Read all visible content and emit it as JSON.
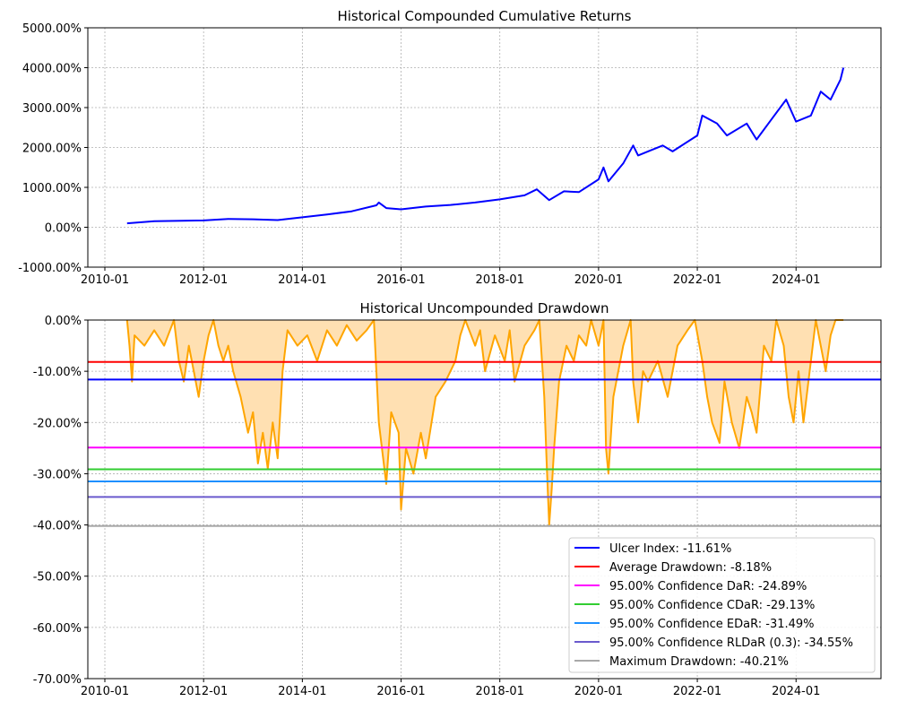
{
  "chart_data": [
    {
      "type": "line",
      "title": "Historical Compounded Cumulative Returns",
      "xlabel": "",
      "ylabel": "",
      "xlim": [
        2009.655,
        2025.72
      ],
      "ylim": [
        -1000,
        5000
      ],
      "grid": true,
      "x_ticks": [
        {
          "v": 2010,
          "label": "2010-01"
        },
        {
          "v": 2012,
          "label": "2012-01"
        },
        {
          "v": 2014,
          "label": "2014-01"
        },
        {
          "v": 2016,
          "label": "2016-01"
        },
        {
          "v": 2018,
          "label": "2018-01"
        },
        {
          "v": 2020,
          "label": "2020-01"
        },
        {
          "v": 2022,
          "label": "2022-01"
        },
        {
          "v": 2024,
          "label": "2024-01"
        }
      ],
      "y_ticks": [
        {
          "v": 5000,
          "label": "5000.00%"
        },
        {
          "v": 4000,
          "label": "4000.00%"
        },
        {
          "v": 3000,
          "label": "3000.00%"
        },
        {
          "v": 2000,
          "label": "2000.00%"
        },
        {
          "v": 1000,
          "label": "1000.00%"
        },
        {
          "v": 0,
          "label": "0.00%"
        },
        {
          "v": -1000,
          "label": "-1000.00%"
        }
      ],
      "series": [
        {
          "name": "Cumulative Returns",
          "color": "#0000ff",
          "x": [
            2010.45,
            2011.0,
            2012.0,
            2012.5,
            2013.0,
            2013.5,
            2014.0,
            2014.5,
            2015.0,
            2015.5,
            2015.55,
            2015.7,
            2016.0,
            2016.5,
            2017.0,
            2017.5,
            2018.0,
            2018.5,
            2018.75,
            2019.0,
            2019.3,
            2019.6,
            2020.0,
            2020.1,
            2020.2,
            2020.5,
            2020.7,
            2020.8,
            2021.0,
            2021.3,
            2021.5,
            2022.0,
            2022.1,
            2022.4,
            2022.6,
            2023.0,
            2023.2,
            2023.5,
            2023.8,
            2024.0,
            2024.3,
            2024.5,
            2024.7,
            2024.9,
            2024.96
          ],
          "y": [
            100,
            150,
            170,
            210,
            200,
            180,
            250,
            320,
            400,
            550,
            620,
            480,
            450,
            520,
            560,
            620,
            700,
            800,
            950,
            680,
            900,
            880,
            1200,
            1500,
            1150,
            1600,
            2050,
            1800,
            1900,
            2050,
            1900,
            2300,
            2800,
            2600,
            2300,
            2600,
            2200,
            2700,
            3200,
            2650,
            2800,
            3400,
            3200,
            3700,
            4000
          ]
        }
      ]
    },
    {
      "type": "area",
      "title": "Historical Uncompounded Drawdown",
      "xlabel": "",
      "ylabel": "",
      "xlim": [
        2009.655,
        2025.72
      ],
      "ylim": [
        -70,
        0
      ],
      "grid": true,
      "x_ticks": [
        {
          "v": 2010,
          "label": "2010-01"
        },
        {
          "v": 2012,
          "label": "2012-01"
        },
        {
          "v": 2014,
          "label": "2014-01"
        },
        {
          "v": 2016,
          "label": "2016-01"
        },
        {
          "v": 2018,
          "label": "2018-01"
        },
        {
          "v": 2020,
          "label": "2020-01"
        },
        {
          "v": 2022,
          "label": "2022-01"
        },
        {
          "v": 2024,
          "label": "2024-01"
        }
      ],
      "y_ticks": [
        {
          "v": 0,
          "label": "0.00%"
        },
        {
          "v": -10,
          "label": "-10.00%"
        },
        {
          "v": -20,
          "label": "-20.00%"
        },
        {
          "v": -30,
          "label": "-30.00%"
        },
        {
          "v": -40,
          "label": "-40.00%"
        },
        {
          "v": -50,
          "label": "-50.00%"
        },
        {
          "v": -60,
          "label": "-60.00%"
        },
        {
          "v": -70,
          "label": "-70.00%"
        }
      ],
      "series": [
        {
          "name": "Drawdown",
          "color": "#ffa500",
          "fill": "#ffe0b2",
          "x": [
            2010.45,
            2010.5,
            2010.55,
            2010.6,
            2010.8,
            2011.0,
            2011.2,
            2011.4,
            2011.5,
            2011.6,
            2011.7,
            2011.8,
            2011.9,
            2012.0,
            2012.1,
            2012.2,
            2012.3,
            2012.4,
            2012.5,
            2012.6,
            2012.75,
            2012.9,
            2013.0,
            2013.1,
            2013.2,
            2013.3,
            2013.4,
            2013.5,
            2013.6,
            2013.7,
            2013.9,
            2014.1,
            2014.3,
            2014.5,
            2014.7,
            2014.9,
            2015.1,
            2015.3,
            2015.45,
            2015.55,
            2015.7,
            2015.8,
            2015.95,
            2016.0,
            2016.1,
            2016.25,
            2016.4,
            2016.5,
            2016.7,
            2016.9,
            2017.1,
            2017.2,
            2017.3,
            2017.5,
            2017.6,
            2017.7,
            2017.9,
            2018.1,
            2018.2,
            2018.3,
            2018.5,
            2018.7,
            2018.8,
            2018.9,
            2018.95,
            2019.0,
            2019.05,
            2019.1,
            2019.2,
            2019.35,
            2019.5,
            2019.6,
            2019.75,
            2019.85,
            2020.0,
            2020.1,
            2020.15,
            2020.2,
            2020.3,
            2020.5,
            2020.65,
            2020.7,
            2020.8,
            2020.9,
            2021.0,
            2021.2,
            2021.4,
            2021.6,
            2021.8,
            2021.95,
            2022.1,
            2022.2,
            2022.3,
            2022.45,
            2022.55,
            2022.7,
            2022.85,
            2023.0,
            2023.1,
            2023.2,
            2023.35,
            2023.5,
            2023.6,
            2023.75,
            2023.85,
            2023.95,
            2024.05,
            2024.15,
            2024.3,
            2024.4,
            2024.5,
            2024.6,
            2024.7,
            2024.8,
            2024.96
          ],
          "y": [
            0,
            -5,
            -12,
            -3,
            -5,
            -2,
            -5,
            0,
            -8,
            -12,
            -5,
            -10,
            -15,
            -8,
            -3,
            0,
            -5,
            -8,
            -5,
            -10,
            -15,
            -22,
            -18,
            -28,
            -22,
            -29,
            -20,
            -27,
            -10,
            -2,
            -5,
            -3,
            -8,
            -2,
            -5,
            -1,
            -4,
            -2,
            0,
            -20,
            -32,
            -18,
            -22,
            -37,
            -25,
            -30,
            -22,
            -27,
            -15,
            -12,
            -8,
            -3,
            0,
            -5,
            -2,
            -10,
            -3,
            -8,
            -2,
            -12,
            -5,
            -2,
            0,
            -15,
            -28,
            -40,
            -33,
            -25,
            -12,
            -5,
            -8,
            -3,
            -5,
            0,
            -5,
            0,
            -25,
            -30,
            -15,
            -5,
            0,
            -12,
            -20,
            -10,
            -12,
            -8,
            -15,
            -5,
            -2,
            0,
            -8,
            -15,
            -20,
            -24,
            -12,
            -20,
            -25,
            -15,
            -18,
            -22,
            -5,
            -8,
            0,
            -5,
            -15,
            -20,
            -10,
            -20,
            -8,
            0,
            -5,
            -10,
            -3,
            0,
            0
          ]
        }
      ],
      "hlines": [
        {
          "label": "Ulcer Index: -11.61%",
          "value": -11.61,
          "color": "#0000ff"
        },
        {
          "label": "Average Drawdown: -8.18%",
          "value": -8.18,
          "color": "#ff0000"
        },
        {
          "label": "95.00% Confidence DaR: -24.89%",
          "value": -24.89,
          "color": "#ff00ff"
        },
        {
          "label": "95.00% Confidence CDaR: -29.13%",
          "value": -29.13,
          "color": "#32cd32"
        },
        {
          "label": "95.00% Confidence EDaR: -31.49%",
          "value": -31.49,
          "color": "#1e90ff"
        },
        {
          "label": "95.00% Confidence RLDaR (0.3): -34.55%",
          "value": -34.55,
          "color": "#6a5acd"
        },
        {
          "label": "Maximum Drawdown: -40.21%",
          "value": -40.21,
          "color": "#a9a9a9"
        }
      ],
      "legend": "lower-right"
    }
  ]
}
